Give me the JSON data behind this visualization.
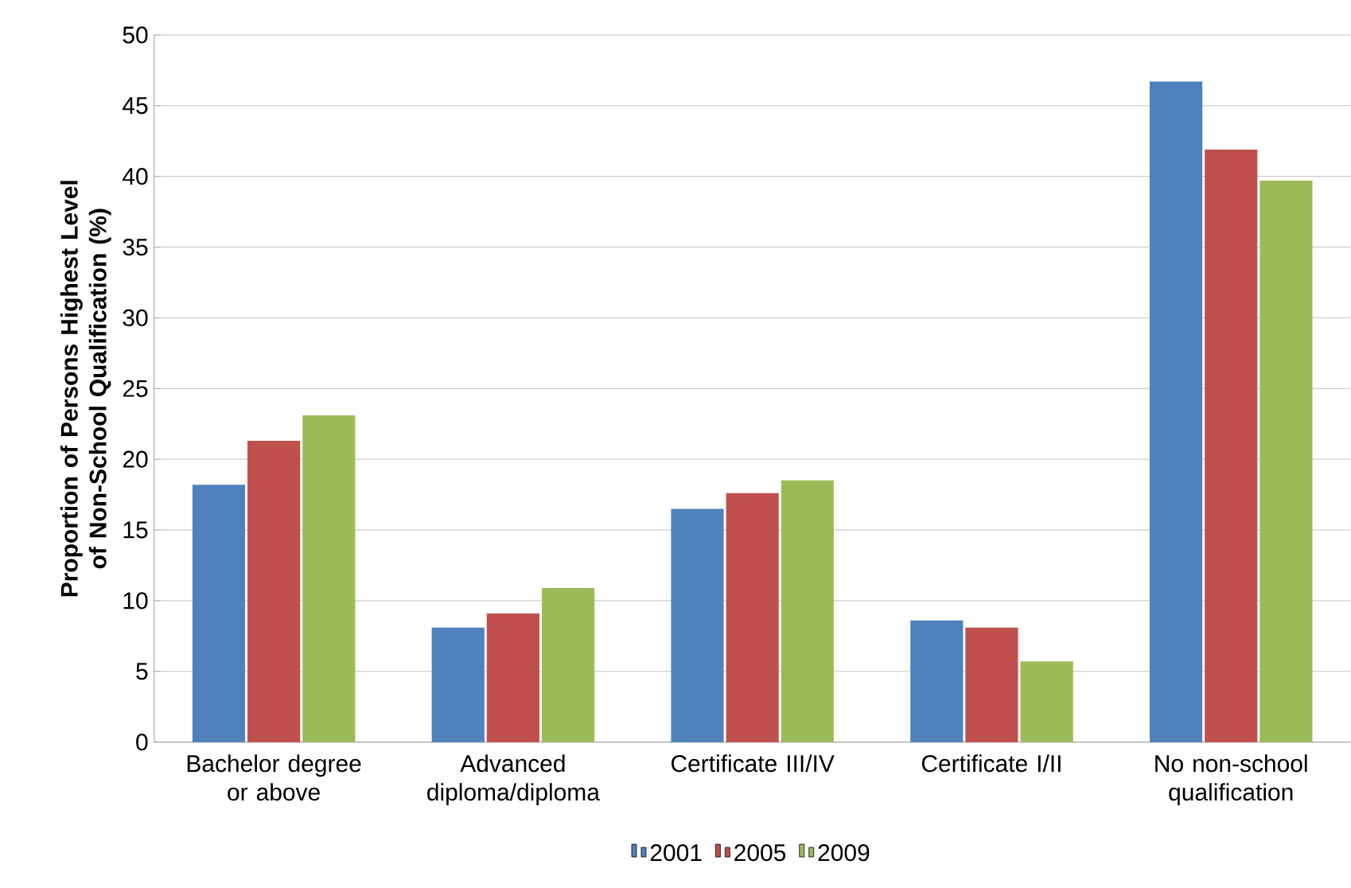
{
  "chart_data": {
    "type": "bar",
    "ylabel": "Proportion of Persons Highest Level of Non-School Qualification (%)",
    "categories": [
      "Bachelor degree or above",
      "Advanced diploma/diploma",
      "Certificate III/IV",
      "Certificate I/II",
      "No non-school qualification"
    ],
    "series": [
      {
        "name": "2001",
        "color": "#4f81bd",
        "values": [
          18.2,
          8.1,
          16.5,
          8.6,
          46.7
        ]
      },
      {
        "name": "2005",
        "color": "#c0504d",
        "values": [
          21.3,
          9.1,
          17.6,
          8.1,
          41.9
        ]
      },
      {
        "name": "2009",
        "color": "#9bbb59",
        "values": [
          23.1,
          10.9,
          18.5,
          5.7,
          39.7
        ]
      }
    ],
    "ylim": [
      0,
      50
    ],
    "yticks": [
      0,
      5,
      10,
      15,
      20,
      25,
      30,
      35,
      40,
      45,
      50
    ],
    "grid": "y",
    "legend": "bottom"
  }
}
